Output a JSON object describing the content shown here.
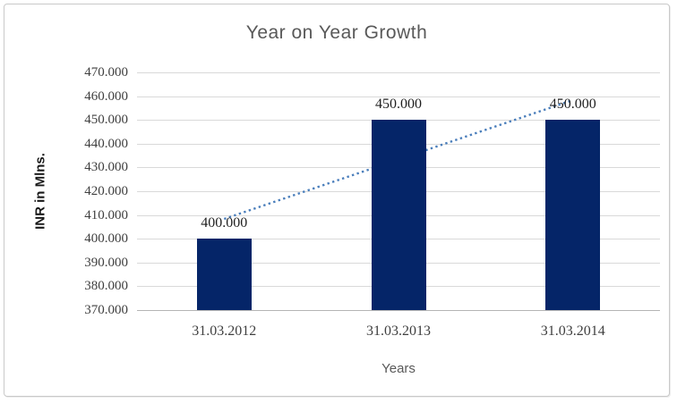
{
  "window": {
    "background_color": "#ffffff",
    "frame_border_color": "#c9c9c9"
  },
  "chart_data": {
    "type": "bar",
    "title": "Year on Year Growth",
    "xlabel": "Years",
    "ylabel": "INR in Mlns.",
    "categories": [
      "31.03.2012",
      "31.03.2013",
      "31.03.2014"
    ],
    "values": [
      400,
      450,
      450
    ],
    "data_labels": [
      "400.000",
      "450.000",
      "450.000"
    ],
    "y_ticks": [
      "470.000",
      "460.000",
      "450.000",
      "440.000",
      "430.000",
      "420.000",
      "410.000",
      "400.000",
      "390.000",
      "380.000",
      "370.000"
    ],
    "y_tick_values": [
      470,
      460,
      450,
      440,
      430,
      420,
      410,
      400,
      390,
      380,
      370
    ],
    "ylim": [
      370,
      470
    ],
    "grid": "horizontal-only",
    "legend": "none",
    "bar_color": "#052568",
    "title_color": "#595959",
    "tick_color": "#3f3f3f",
    "trendline": {
      "type": "linear",
      "style": "dotted",
      "color": "#4a7ebb",
      "values": [
        408.33,
        433.33,
        458.33
      ]
    }
  }
}
